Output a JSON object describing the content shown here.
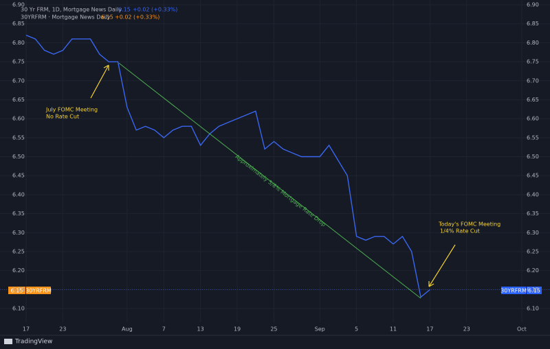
{
  "chart_data": {
    "type": "line",
    "title": "30 Yr FRM, 1D, Mortgage News Daily",
    "title_price": "6.15",
    "title_change": "+0.02 (+0.33%)",
    "legend_label": "30YRFRM · Mortgage News Daily",
    "legend_price": "6.15",
    "legend_change": "+0.02 (+0.33%)",
    "last_price": 6.15,
    "annotations": [
      "July FOMC Meeting",
      "No Rate Cut",
      "Today's FOMC Meeting",
      "1/4% Rate Cut",
      "Approximately 5/8% Mortgage Rate Drop"
    ],
    "brand": "TradingView",
    "categories": [
      "17",
      null,
      null,
      null,
      "23",
      null,
      null,
      null,
      null,
      null,
      null,
      "Aug",
      null,
      null,
      null,
      "7",
      null,
      null,
      null,
      "13",
      null,
      null,
      null,
      "19",
      null,
      null,
      null,
      "25",
      null,
      null,
      null,
      null,
      "Sep",
      null,
      null,
      null,
      "5",
      null,
      null,
      null,
      "11",
      null,
      null,
      null,
      "17",
      null,
      null,
      null,
      "23",
      null,
      null,
      null,
      null,
      null,
      "Oct"
    ],
    "series": [
      {
        "name": "30YRFRM",
        "color": "#3a66f0",
        "values": [
          6.82,
          6.81,
          6.78,
          6.77,
          6.78,
          6.81,
          6.81,
          6.81,
          6.77,
          6.75,
          6.75,
          6.63,
          6.57,
          6.58,
          6.57,
          6.55,
          6.57,
          6.58,
          6.58,
          6.53,
          6.56,
          6.58,
          6.59,
          6.6,
          6.61,
          6.62,
          6.52,
          6.54,
          6.52,
          6.51,
          6.5,
          6.5,
          6.5,
          6.53,
          6.49,
          6.45,
          6.29,
          6.28,
          6.29,
          6.29,
          6.27,
          6.29,
          6.25,
          6.13,
          6.15,
          null,
          null,
          null,
          null,
          null,
          null,
          null,
          null,
          null,
          null
        ]
      }
    ],
    "ylim": [
      6.1,
      6.9
    ],
    "yticks": [
      {
        "value": 6.9,
        "label": "6.90"
      },
      6.85,
      {
        "value": 6.8,
        "label": "6.80"
      },
      6.75,
      {
        "value": 6.7,
        "label": "6.70"
      },
      6.65,
      {
        "value": 6.6,
        "label": "6.60"
      },
      6.55,
      {
        "value": 6.5,
        "label": "6.50"
      },
      6.45,
      {
        "value": 6.4,
        "label": "6.40"
      },
      6.35,
      {
        "value": 6.3,
        "label": "6.30"
      },
      6.25,
      {
        "value": 6.2,
        "label": "6.20"
      },
      6.15,
      {
        "value": 6.1,
        "label": "6.10"
      }
    ],
    "grid": true
  }
}
